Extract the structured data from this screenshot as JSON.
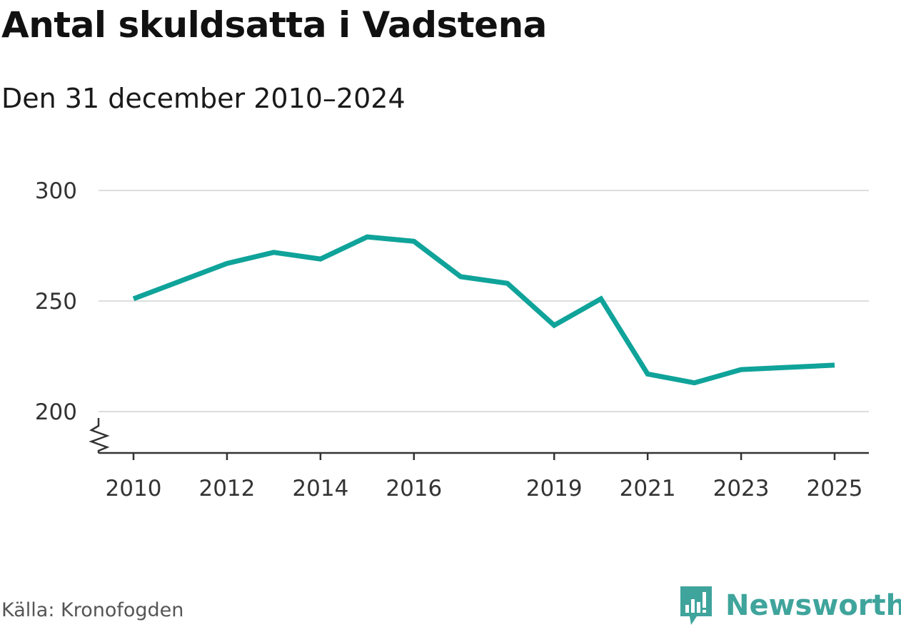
{
  "header": {
    "title": "Antal skuldsatta i Vadstena",
    "subtitle": "Den 31 december 2010–2024"
  },
  "footer": {
    "source": "Källa: Kronofogden",
    "brand": "Newsworthy"
  },
  "icons": {
    "brand_logo": "bar-chart-speech-bubble-icon",
    "axis_break": "zigzag-axis-break-icon"
  },
  "colors": {
    "line": "#0fa39a",
    "grid": "#dddddd",
    "axis": "#333333",
    "brand": "#3fa49c"
  },
  "chart_data": {
    "type": "line",
    "title": "Antal skuldsatta i Vadstena",
    "subtitle": "Den 31 december 2010–2024",
    "xlabel": "",
    "ylabel": "",
    "x": [
      2010,
      2011,
      2012,
      2013,
      2014,
      2015,
      2016,
      2017,
      2018,
      2019,
      2020,
      2021,
      2022,
      2023,
      2024,
      2025
    ],
    "values": [
      251,
      259,
      267,
      272,
      269,
      279,
      277,
      261,
      258,
      239,
      251,
      217,
      213,
      219,
      220,
      221
    ],
    "xticks": [
      "2010",
      "2012",
      "2014",
      "2016",
      "2019",
      "2021",
      "2023",
      "2025"
    ],
    "yticks": [
      200,
      250,
      300
    ],
    "ylim": [
      200,
      300
    ],
    "xlim": [
      2010,
      2025
    ],
    "grid": true,
    "axis_break": true
  }
}
